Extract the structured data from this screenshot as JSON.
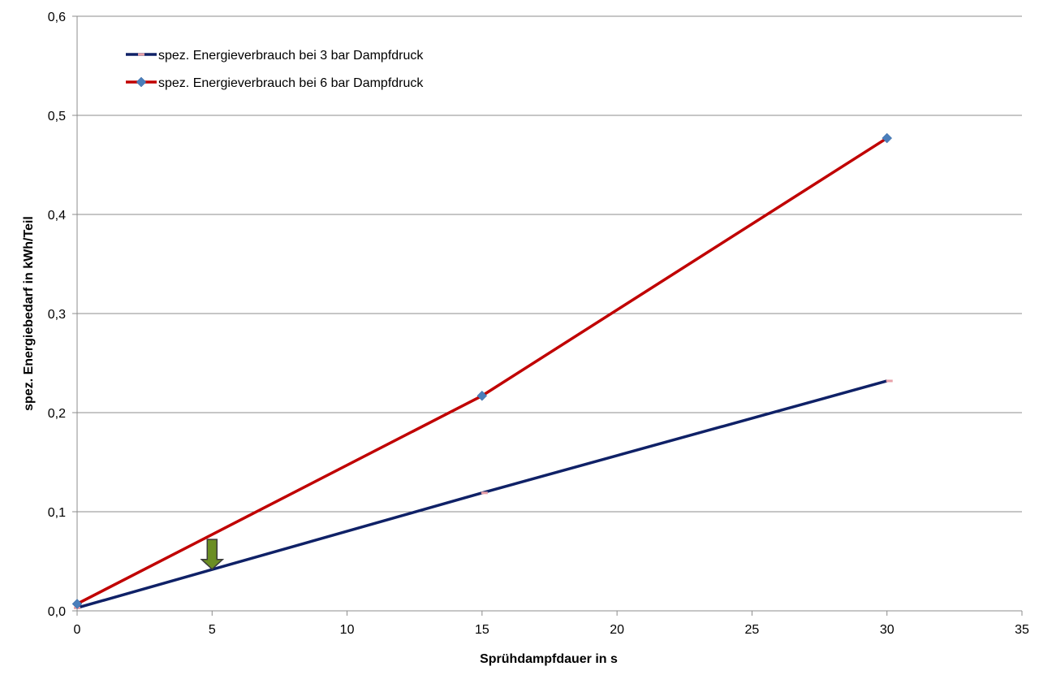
{
  "chart_data": {
    "type": "line",
    "title": "",
    "xlabel": "Sprühdampfdauer in s",
    "ylabel": "spez. Energiebedarf in kWh/Teil",
    "xlim": [
      0,
      35
    ],
    "ylim": [
      0,
      0.6
    ],
    "x_ticks": [
      "0",
      "5",
      "10",
      "15",
      "20",
      "25",
      "30",
      "35"
    ],
    "y_ticks": [
      "0,0",
      "0,1",
      "0,2",
      "0,3",
      "0,4",
      "0,5",
      "0,6"
    ],
    "grid": "horizontal",
    "legend_position": "top-left",
    "series": [
      {
        "name": "spez. Energieverbrauch bei 3 bar Dampfdruck",
        "color": "#0f2167",
        "marker": "dash",
        "marker_color": "#e8a0a8",
        "x": [
          0,
          15,
          30
        ],
        "y": [
          0.003,
          0.119,
          0.232
        ]
      },
      {
        "name": "spez. Energieverbrauch bei 6 bar Dampfdruck",
        "color": "#c00000",
        "marker": "diamond",
        "marker_color": "#4a7ebb",
        "x": [
          0,
          15,
          30
        ],
        "y": [
          0.007,
          0.217,
          0.477
        ]
      }
    ],
    "annotations": [
      {
        "type": "arrow-down",
        "x": 5,
        "y_from": 0.072,
        "y_to": 0.042,
        "color": "#6b8e23"
      }
    ]
  }
}
